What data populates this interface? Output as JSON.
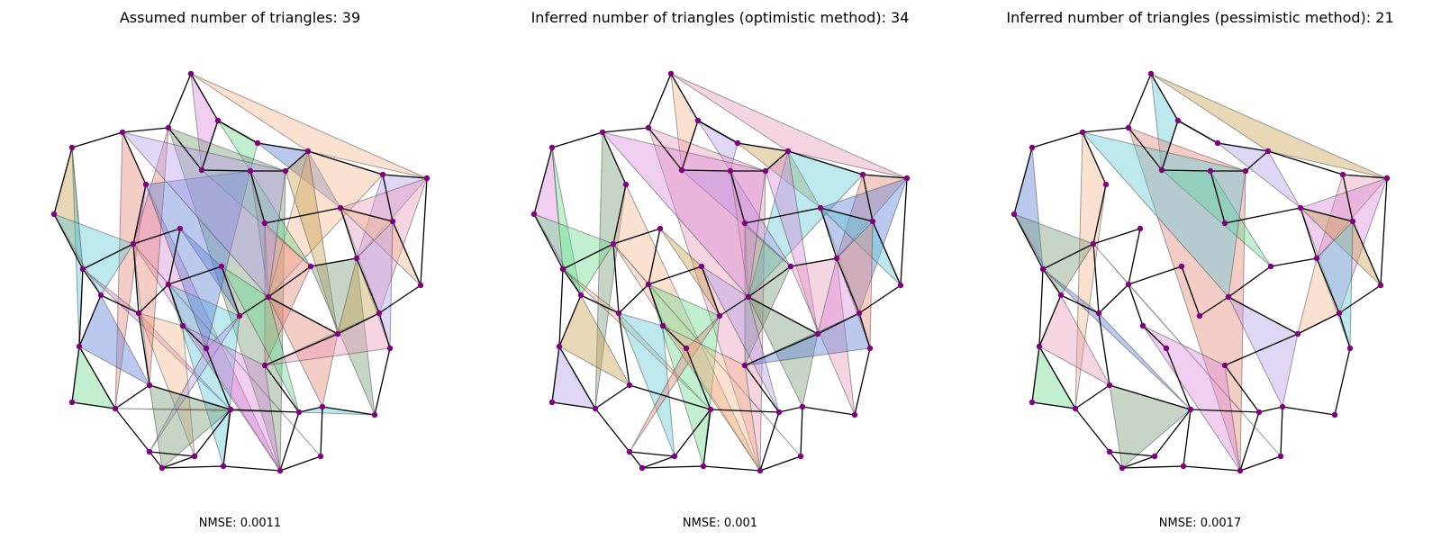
{
  "panels": [
    {
      "title": "Assumed number of triangles: 39",
      "metric": "NMSE: 0.0011"
    },
    {
      "title": "Inferred number of triangles (optimistic method): 34",
      "metric": "NMSE: 0.001"
    },
    {
      "title": "Inferred number of triangles (pessimistic method): 21",
      "metric": "NMSE: 0.0017"
    }
  ],
  "colors": {
    "node": "#800080",
    "edge": "#000000",
    "triangle_palette": [
      "#d98bd9",
      "#f4b88f",
      "#5fc7d6",
      "#6bd98f",
      "#b59ee8",
      "#e8877a",
      "#7a9a7a",
      "#e89ab8",
      "#5f7fd6",
      "#c9a14f"
    ]
  }
}
